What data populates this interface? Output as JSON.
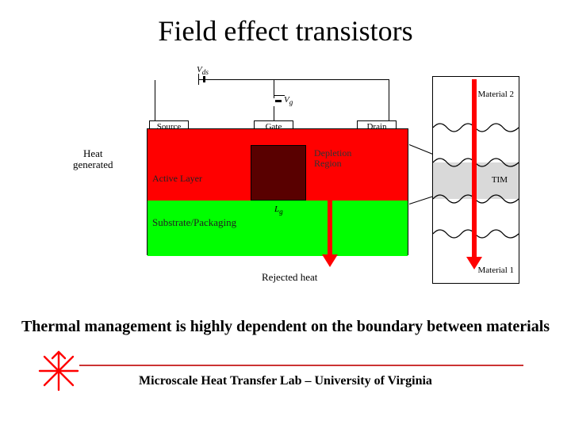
{
  "title": "Field effect transistors",
  "heat_generated": "Heat\ngenerated",
  "rejected_heat": "Rejected heat",
  "conclusion": "Thermal management is highly dependent on the boundary between materials",
  "footer": "Microscale Heat Transfer Lab – University of Virginia",
  "fet": {
    "source": "Source",
    "gate": "Gate",
    "drain": "Drain",
    "vds": "V",
    "vds_sub": "ds",
    "vg": "V",
    "vg_sub": "g",
    "active": "Active Layer",
    "substrate": "Substrate/Packaging",
    "depletion": "Depletion\nRegion",
    "lg": "L",
    "lg_sub": "g"
  },
  "tim": {
    "mat1": "Material 1",
    "mat2": "Material 2",
    "tim": "TIM"
  },
  "colors": {
    "active": "#ff0000",
    "substrate": "#00ff00",
    "arrow": "#ff0000",
    "hr": "#cc3333",
    "asterisk": "#ff0000",
    "tim_fill": "#d9d9d9"
  }
}
